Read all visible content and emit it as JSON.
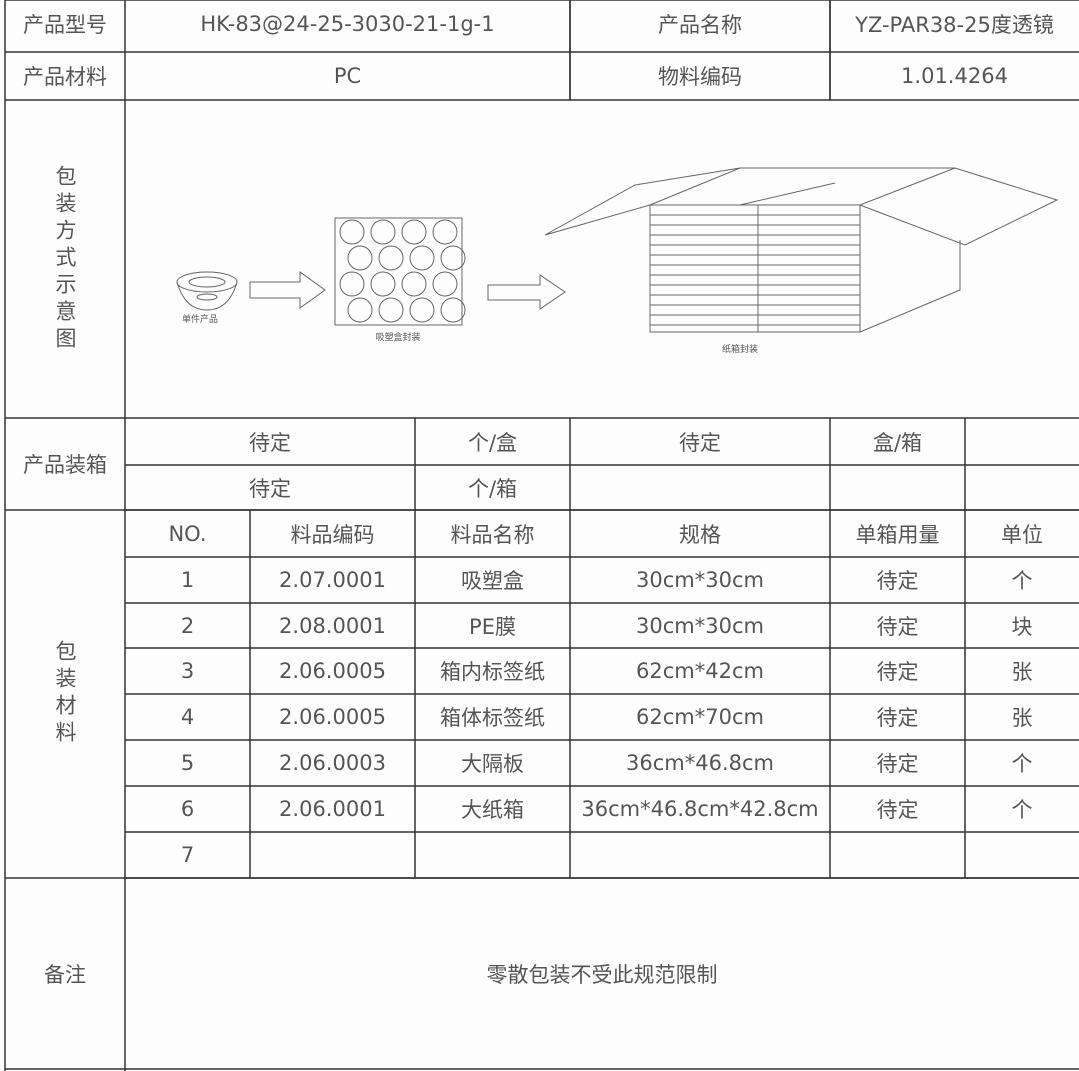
{
  "header": {
    "rows": [
      [
        "产品型号",
        "HK-83@24-25-3030-21-1g-1",
        "产品名称",
        "YZ-PAR38-25度透镜"
      ],
      [
        "产品材料",
        "PC",
        "物料编码",
        "1.01.4264"
      ]
    ]
  },
  "packaging_method": {
    "label": "包装方式示意图",
    "steps": [
      "单件产品",
      "吸塑盒封装",
      "纸箱封装"
    ]
  },
  "product_packing": {
    "label": "产品装箱",
    "rows": [
      [
        "待定",
        "个/盒",
        "待定",
        "盒/箱"
      ],
      [
        "待定",
        "个/箱"
      ]
    ]
  },
  "materials": {
    "label": "包装材料",
    "columns": [
      "NO.",
      "料品编码",
      "料品名称",
      "规格",
      "单箱用量",
      "单位"
    ],
    "rows": [
      [
        "1",
        "2.07.0001",
        "吸塑盒",
        "30cm*30cm",
        "待定",
        "个"
      ],
      [
        "2",
        "2.08.0001",
        "PE膜",
        "30cm*30cm",
        "待定",
        "块"
      ],
      [
        "3",
        "2.06.0005",
        "箱内标签纸",
        "62cm*42cm",
        "待定",
        "张"
      ],
      [
        "4",
        "2.06.0005",
        "箱体标签纸",
        "62cm*70cm",
        "待定",
        "张"
      ],
      [
        "5",
        "2.06.0003",
        "大隔板",
        "36cm*46.8cm",
        "待定",
        "个"
      ],
      [
        "6",
        "2.06.0001",
        "大纸箱",
        "36cm*46.8cm*42.8cm",
        "待定",
        "个"
      ],
      [
        "7"
      ]
    ]
  },
  "remarks": {
    "label": "备注",
    "text": "零散包装不受此规范限制"
  }
}
